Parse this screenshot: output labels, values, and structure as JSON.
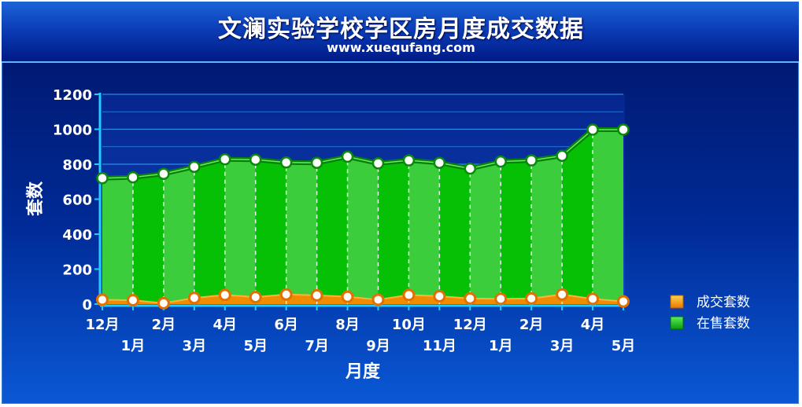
{
  "header": {
    "title": "文澜实验学校学区房月度成交数据",
    "subtitle": "www.xuequfang.com"
  },
  "chart_data": {
    "type": "area",
    "title": "文澜实验学校学区房月度成交数据",
    "subtitle": "www.xuequfang.com",
    "xlabel": "月度",
    "ylabel": "套数",
    "ylim": [
      0,
      1200
    ],
    "yticks": [
      0,
      200,
      400,
      600,
      800,
      1000,
      1200
    ],
    "grid": true,
    "legend_position": "right",
    "categories": [
      "12月",
      "1月",
      "2月",
      "3月",
      "4月",
      "5月",
      "6月",
      "7月",
      "8月",
      "9月",
      "10月",
      "11月",
      "12月",
      "1月",
      "2月",
      "3月",
      "4月",
      "5月"
    ],
    "series": [
      {
        "name": "在售套数",
        "color": "#22c922",
        "values": [
          720,
          725,
          745,
          785,
          828,
          826,
          810,
          808,
          843,
          805,
          822,
          808,
          775,
          815,
          822,
          848,
          998,
          998
        ]
      },
      {
        "name": "成交套数",
        "color": "#f08c00",
        "values": [
          25,
          22,
          5,
          35,
          52,
          40,
          55,
          50,
          42,
          25,
          52,
          45,
          32,
          30,
          32,
          55,
          30,
          15
        ]
      }
    ]
  }
}
